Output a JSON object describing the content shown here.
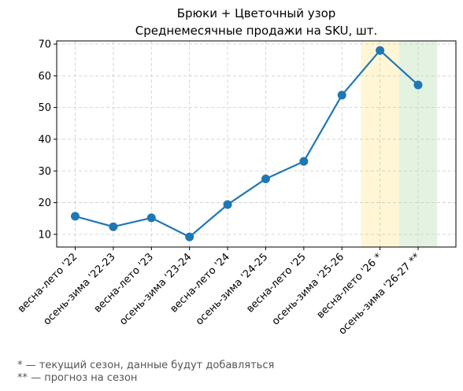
{
  "chart_data": {
    "type": "line",
    "title": "Брюки + Цветочный узор",
    "subtitle": "Среднемесячные продажи на SKU, шт.",
    "categories": [
      "весна-лето '22",
      "осень-зима '22-23",
      "весна-лето '23",
      "осень-зима '23-24",
      "весна-лето '24",
      "осень-зима '24-25",
      "весна-лето '25",
      "осень-зима '25-26",
      "весна-лето '26 *",
      "осень-зима '26-27 **"
    ],
    "series": [
      {
        "values": [
          15.7,
          12.4,
          15.2,
          9.2,
          19.4,
          27.5,
          33.0,
          53.9,
          68.0,
          57.1
        ]
      }
    ],
    "ylim": [
      6,
      71
    ],
    "yticks": [
      10,
      20,
      30,
      40,
      50,
      60,
      70
    ],
    "xlabel": "",
    "ylabel": "",
    "grid": true,
    "highlights": [
      {
        "category_index": 8,
        "color": "#fff6d5"
      },
      {
        "category_index": 9,
        "color": "#e4f2e1"
      }
    ],
    "line_color": "#1f77b4"
  },
  "notes": [
    "* — текущий сезон, данные будут добавляться",
    "** — прогноз на сезон"
  ]
}
